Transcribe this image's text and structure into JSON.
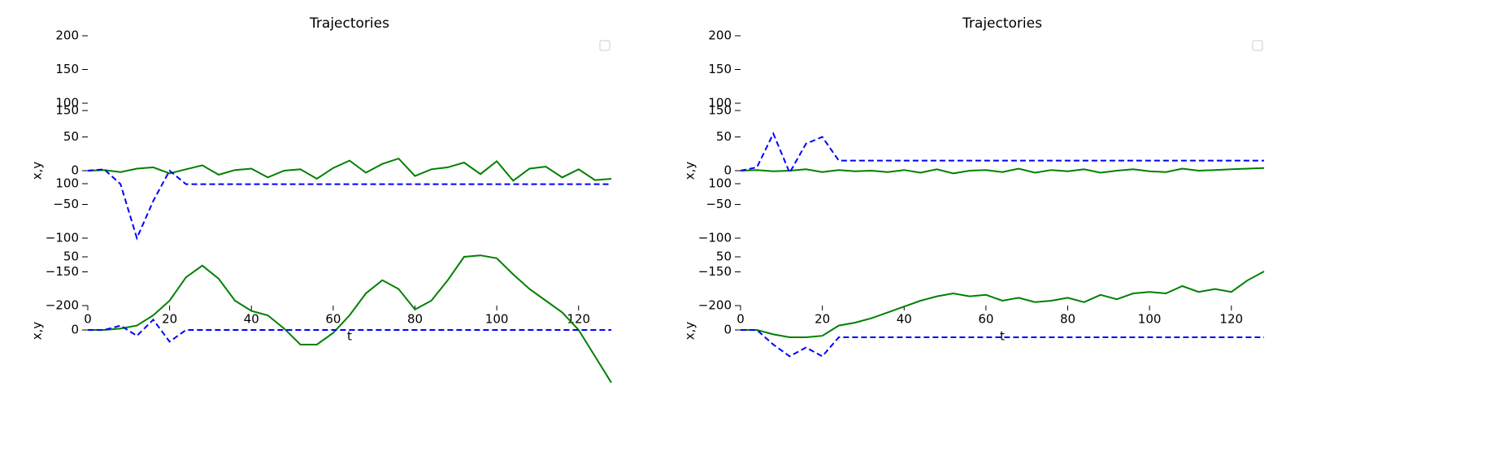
{
  "chart_data": [
    {
      "type": "line",
      "title": "Trajectories",
      "ylabel": "x,y",
      "xlabel": "t",
      "legend": "upper right",
      "x": [
        0,
        4,
        8,
        12,
        16,
        20,
        24,
        28,
        32,
        36,
        40,
        44,
        48,
        52,
        56,
        60,
        64,
        68,
        72,
        76,
        80,
        84,
        88,
        92,
        96,
        100,
        104,
        108,
        112,
        116,
        120,
        124,
        128
      ],
      "xlim": [
        0,
        128
      ],
      "xticks": [
        0,
        20,
        40,
        60,
        80,
        100,
        120
      ],
      "ylim": [
        -200,
        200
      ],
      "yticks": [
        {
          "value": -200,
          "label": "−200"
        },
        {
          "value": -150,
          "label": "−150"
        },
        {
          "value": -100,
          "label": "−100"
        },
        {
          "value": -50,
          "label": "−50"
        },
        0,
        50,
        100,
        150,
        200
      ],
      "series": [
        {
          "color": "#008000",
          "linestyle": "solid",
          "values": [
            0,
            1,
            -2,
            3,
            5,
            -4,
            2,
            8,
            -6,
            1,
            3,
            -10,
            0,
            2,
            -12,
            4,
            15,
            -3,
            10,
            18,
            -8,
            2,
            5,
            12,
            -5,
            14,
            -15,
            3,
            6,
            -10,
            2,
            -14,
            -12
          ]
        },
        {
          "color": "#0000ff",
          "linestyle": "dashed",
          "values": [
            0,
            2,
            -20,
            -100,
            -45,
            0,
            -20,
            -20,
            -20,
            -20,
            -20,
            -20,
            -20,
            -20,
            -20,
            -20,
            -20,
            -20,
            -20,
            -20,
            -20,
            -20,
            -20,
            -20,
            -20,
            -20,
            -20,
            -20,
            -20,
            -20,
            -20,
            -20,
            -20
          ]
        }
      ]
    },
    {
      "type": "line",
      "ylabel": "x,y",
      "x": [
        0,
        4,
        8,
        12,
        16,
        20,
        24,
        28,
        32,
        36,
        40,
        44,
        48,
        52,
        56,
        60,
        64,
        68,
        72,
        76,
        80,
        84,
        88,
        92,
        96,
        100,
        104,
        108,
        112,
        116,
        120,
        124,
        128
      ],
      "xlim": [
        0,
        128
      ],
      "ylim": [
        -40,
        150
      ],
      "yticks": [
        0,
        50,
        100,
        150
      ],
      "series": [
        {
          "color": "#008000",
          "linestyle": "solid",
          "values": [
            0,
            0,
            1,
            3,
            10,
            20,
            36,
            44,
            35,
            20,
            13,
            10,
            1,
            -10,
            -10,
            -2,
            10,
            25,
            34,
            28,
            14,
            20,
            34,
            50,
            51,
            49,
            38,
            28,
            20,
            12,
            0,
            -18,
            -36
          ]
        },
        {
          "color": "#0000ff",
          "linestyle": "dashed",
          "values": [
            0,
            0,
            3,
            -4,
            7,
            -8,
            0,
            0,
            0,
            0,
            0,
            0,
            0,
            0,
            0,
            0,
            0,
            0,
            0,
            0,
            0,
            0,
            0,
            0,
            0,
            0,
            0,
            0,
            0,
            0,
            0,
            0,
            0
          ]
        }
      ]
    },
    {
      "type": "line",
      "title": "Trajectories",
      "ylabel": "x,y",
      "xlabel": "t",
      "legend": "upper right",
      "x": [
        0,
        4,
        8,
        12,
        16,
        20,
        24,
        28,
        32,
        36,
        40,
        44,
        48,
        52,
        56,
        60,
        64,
        68,
        72,
        76,
        80,
        84,
        88,
        92,
        96,
        100,
        104,
        108,
        112,
        116,
        120,
        124,
        128
      ],
      "xlim": [
        0,
        128
      ],
      "xticks": [
        0,
        20,
        40,
        60,
        80,
        100,
        120
      ],
      "ylim": [
        -200,
        200
      ],
      "yticks": [
        {
          "value": -200,
          "label": "−200"
        },
        {
          "value": -150,
          "label": "−150"
        },
        {
          "value": -100,
          "label": "−100"
        },
        {
          "value": -50,
          "label": "−50"
        },
        0,
        50,
        100,
        150,
        200
      ],
      "series": [
        {
          "color": "#008000",
          "linestyle": "solid",
          "values": [
            0,
            1,
            -1,
            0,
            2,
            -2,
            1,
            -1,
            0,
            -2,
            1,
            -3,
            2,
            -4,
            0,
            1,
            -2,
            3,
            -3,
            1,
            -1,
            2,
            -3,
            0,
            2,
            -1,
            -2,
            3,
            0,
            1,
            2,
            3,
            4
          ]
        },
        {
          "color": "#0000ff",
          "linestyle": "dashed",
          "values": [
            0,
            5,
            55,
            -3,
            40,
            50,
            15,
            15,
            15,
            15,
            15,
            15,
            15,
            15,
            15,
            15,
            15,
            15,
            15,
            15,
            15,
            15,
            15,
            15,
            15,
            15,
            15,
            15,
            15,
            15,
            15,
            15,
            15
          ]
        }
      ]
    },
    {
      "type": "line",
      "ylabel": "x,y",
      "x": [
        0,
        4,
        8,
        12,
        16,
        20,
        24,
        28,
        32,
        36,
        40,
        44,
        48,
        52,
        56,
        60,
        64,
        68,
        72,
        76,
        80,
        84,
        88,
        92,
        96,
        100,
        104,
        108,
        112,
        116,
        120,
        124,
        128
      ],
      "xlim": [
        0,
        128
      ],
      "ylim": [
        -40,
        150
      ],
      "yticks": [
        0,
        50,
        100,
        150
      ],
      "series": [
        {
          "color": "#008000",
          "linestyle": "solid",
          "values": [
            0,
            0,
            -3,
            -5,
            -5,
            -4,
            3,
            5,
            8,
            12,
            16,
            20,
            23,
            25,
            23,
            24,
            20,
            22,
            19,
            20,
            22,
            19,
            24,
            21,
            25,
            26,
            25,
            30,
            26,
            28,
            26,
            34,
            40
          ]
        },
        {
          "color": "#0000ff",
          "linestyle": "dashed",
          "values": [
            0,
            0,
            -10,
            -18,
            -12,
            -18,
            -5,
            -5,
            -5,
            -5,
            -5,
            -5,
            -5,
            -5,
            -5,
            -5,
            -5,
            -5,
            -5,
            -5,
            -5,
            -5,
            -5,
            -5,
            -5,
            -5,
            -5,
            -5,
            -5,
            -5,
            -5,
            -5,
            -5
          ]
        }
      ]
    }
  ]
}
